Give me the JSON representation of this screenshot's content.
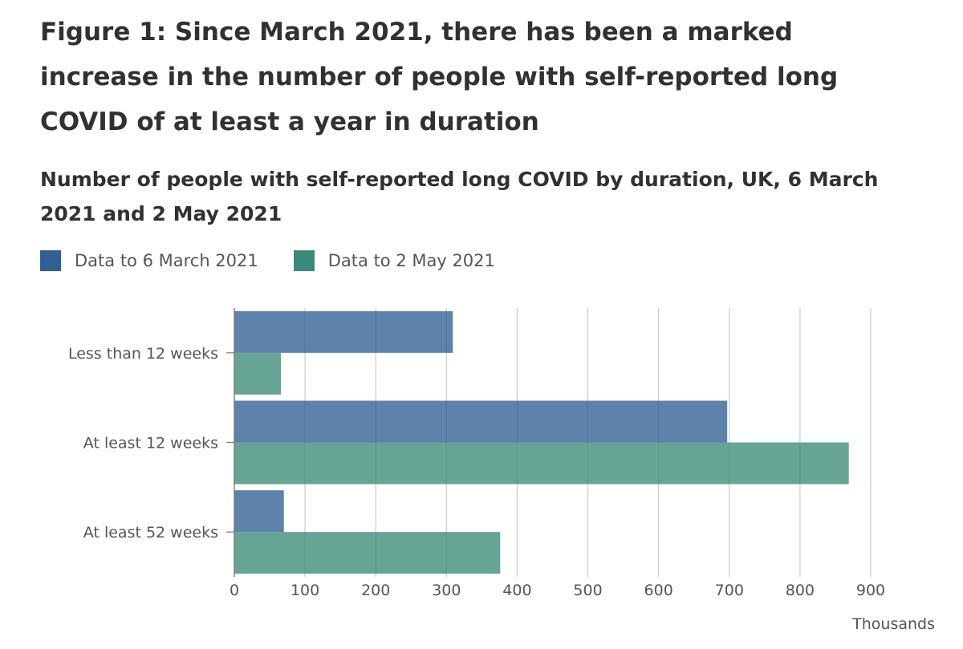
{
  "figure_title": "Figure 1: Since March 2021, there has been a marked increase in the number of people with self-reported long COVID of at least a year in duration",
  "chart_data": {
    "type": "bar",
    "orientation": "horizontal",
    "title": "Number of people with self-reported long COVID by duration, UK, 6 March 2021 and 2 May 2021",
    "categories": [
      "Less than 12 weeks",
      "At least 12 weeks",
      "At least 52 weeks"
    ],
    "series": [
      {
        "name": "Data to 6 March 2021",
        "color": "#2f5f93",
        "values": [
          309,
          697,
          70
        ]
      },
      {
        "name": "Data to 2 May 2021",
        "color": "#3b8a79",
        "values": [
          66,
          869,
          376
        ]
      }
    ],
    "xlim": [
      0,
      900
    ],
    "xticks": [
      "0",
      "100",
      "200",
      "300",
      "400",
      "500",
      "600",
      "700",
      "800",
      "900"
    ],
    "xunit": "Thousands",
    "grid": "vertical",
    "legend_position": "top-left"
  }
}
